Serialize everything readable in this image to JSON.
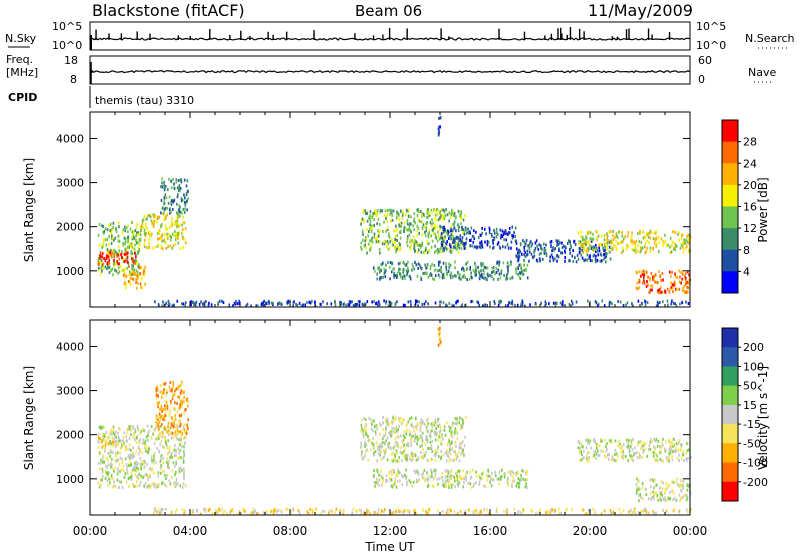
{
  "header": {
    "radar": "Blackstone (fitACF)",
    "beam": "Beam 06",
    "date": "11/May/2009"
  },
  "panels": {
    "nsky_label": "N.Sky",
    "nsky_ticks": [
      "10^5",
      "10^0"
    ],
    "nsearch_label": "N.Search",
    "nsearch_ticks": [
      "10^5",
      "10^0"
    ],
    "freq_label_1": "Freq.",
    "freq_label_2": "[MHz]",
    "freq_ticks": [
      "18",
      "8"
    ],
    "nave_label": "Nave",
    "nave_ticks": [
      "60",
      "0"
    ],
    "cpid_label": "CPID",
    "cpid_text": "themis (tau) 3310"
  },
  "colors": {
    "power_scale": [
      "#0000ff",
      "#1e4fa0",
      "#3a8c6a",
      "#6dc44f",
      "#f4f000",
      "#ffb000",
      "#ff6a00",
      "#ff0000"
    ],
    "velocity_scale": [
      "#1f2fa8",
      "#2c5aa8",
      "#34a060",
      "#7ed04a",
      "#c8c8c8",
      "#f5e35a",
      "#ffb000",
      "#ff6a00",
      "#ff0000"
    ],
    "ground_scatter": "#c0c0c0"
  },
  "chart_data": [
    {
      "type": "heatmap",
      "title": "",
      "xlabel": "Time UT",
      "ylabel": "Slant Range [km]",
      "xticks": [
        "00:00",
        "04:00",
        "08:00",
        "12:00",
        "16:00",
        "20:00",
        "00:00"
      ],
      "yticks": [
        "1000",
        "2000",
        "3000",
        "4000"
      ],
      "xlim": [
        0,
        24
      ],
      "ylim": [
        180,
        4600
      ],
      "colorbar_label": "Power [dB]",
      "colorbar_ticks": [
        "4",
        "8",
        "12",
        "16",
        "20",
        "24",
        "28"
      ],
      "scatter_regions": [
        {
          "t": [
            0.3,
            2.0
          ],
          "range": [
            900,
            2100
          ],
          "level": 3
        },
        {
          "t": [
            0.3,
            1.9
          ],
          "range": [
            1150,
            1450
          ],
          "level": 7
        },
        {
          "t": [
            1.3,
            2.2
          ],
          "range": [
            600,
            1100
          ],
          "level": 5
        },
        {
          "t": [
            2.0,
            3.8
          ],
          "range": [
            1500,
            2300
          ],
          "level": 4
        },
        {
          "t": [
            2.8,
            3.9
          ],
          "range": [
            2300,
            3100
          ],
          "level": 2
        },
        {
          "t": [
            10.8,
            15.0
          ],
          "range": [
            1400,
            2400
          ],
          "level": 3
        },
        {
          "t": [
            11.3,
            17.5
          ],
          "range": [
            800,
            1200
          ],
          "level": 2
        },
        {
          "t": [
            14.0,
            17.0
          ],
          "range": [
            1500,
            2000
          ],
          "level": 1
        },
        {
          "t": [
            17.0,
            20.8
          ],
          "range": [
            1200,
            1700
          ],
          "level": 1
        },
        {
          "t": [
            19.5,
            24.0
          ],
          "range": [
            1400,
            1900
          ],
          "level": 4
        },
        {
          "t": [
            21.8,
            24.0
          ],
          "range": [
            500,
            1000
          ],
          "level": 6
        },
        {
          "t": [
            2.5,
            24.0
          ],
          "range": [
            200,
            320
          ],
          "level": 1
        },
        {
          "t": [
            13.9,
            14.0
          ],
          "range": [
            4000,
            4500
          ],
          "level": 1
        }
      ]
    },
    {
      "type": "heatmap",
      "title": "",
      "xlabel": "Time UT",
      "ylabel": "Slant Range [km]",
      "xticks": [
        "00:00",
        "04:00",
        "08:00",
        "12:00",
        "16:00",
        "20:00",
        "00:00"
      ],
      "yticks": [
        "1000",
        "2000",
        "3000",
        "4000"
      ],
      "xlim": [
        0,
        24
      ],
      "ylim": [
        180,
        4600
      ],
      "colorbar_label": "Velocity [m s^-1]",
      "colorbar_ticks": [
        "200",
        "100",
        "50",
        "15",
        "-15",
        "-50",
        "-100",
        "-200"
      ],
      "scatter_regions": [
        {
          "t": [
            0.3,
            3.8
          ],
          "range": [
            800,
            2200
          ],
          "level": 4
        },
        {
          "t": [
            0.3,
            1.0
          ],
          "range": [
            1700,
            2000
          ],
          "level": 5
        },
        {
          "t": [
            2.6,
            3.9
          ],
          "range": [
            2000,
            3200
          ],
          "level": 6
        },
        {
          "t": [
            2.5,
            24.0
          ],
          "range": [
            200,
            320
          ],
          "level": 5
        },
        {
          "t": [
            10.8,
            15.0
          ],
          "range": [
            1400,
            2400
          ],
          "level": 4
        },
        {
          "t": [
            11.3,
            17.5
          ],
          "range": [
            800,
            1200
          ],
          "level": 4
        },
        {
          "t": [
            19.5,
            24.0
          ],
          "range": [
            1400,
            1900
          ],
          "level": 4
        },
        {
          "t": [
            21.8,
            24.0
          ],
          "range": [
            500,
            1000
          ],
          "level": 4
        },
        {
          "t": [
            13.9,
            14.0
          ],
          "range": [
            4000,
            4500
          ],
          "level": 6
        }
      ]
    }
  ]
}
